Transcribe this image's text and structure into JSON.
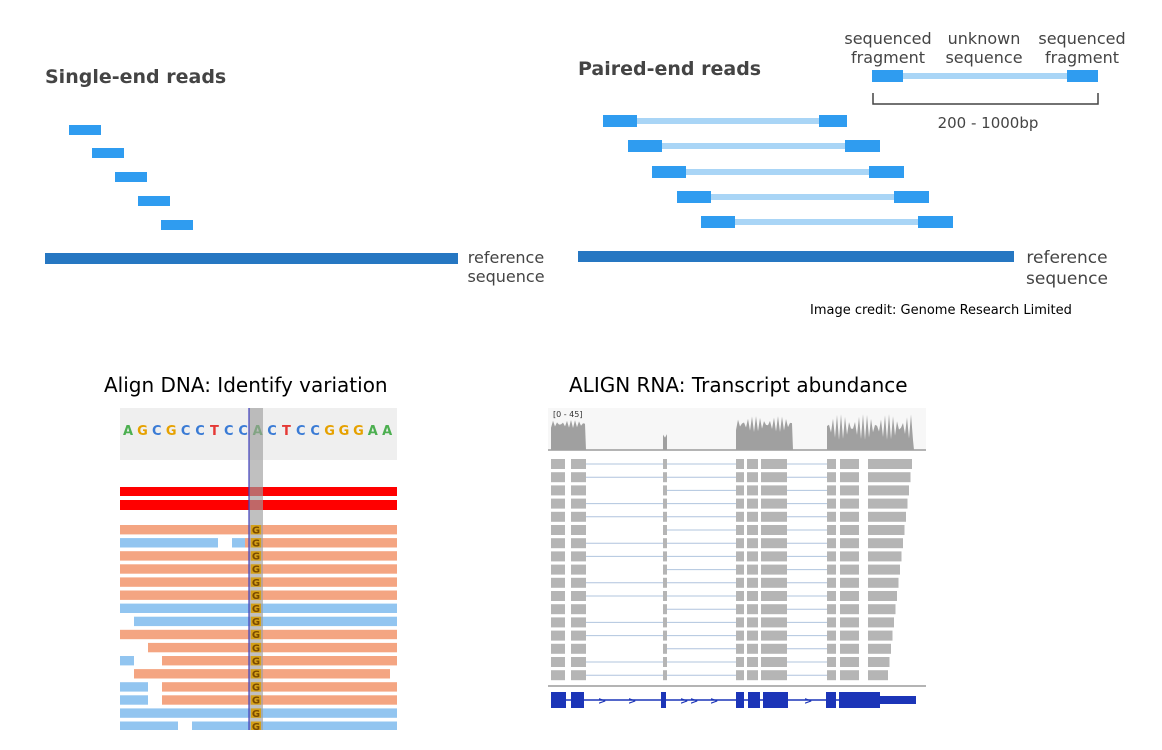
{
  "single_end": {
    "title": "Single-end reads",
    "reference_label_1": "reference",
    "reference_label_2": "sequence"
  },
  "paired_end": {
    "title": "Paired-end reads",
    "reference_label_1": "reference",
    "reference_label_2": "sequence",
    "legend": {
      "left_1": "sequenced",
      "left_2": "fragment",
      "middle_1": "unknown",
      "middle_2": "sequence",
      "right_1": "sequenced",
      "right_2": "fragment",
      "size_range": "200 - 1000bp"
    }
  },
  "credit": "Image credit: Genome Research Limited",
  "dna_panel": {
    "caption": "Align DNA: Identify variation",
    "sequence": [
      "A",
      "G",
      "C",
      "G",
      "C",
      "C",
      "T",
      "C",
      "C",
      "A",
      "C",
      "T",
      "C",
      "C",
      "G",
      "G",
      "G",
      "A",
      "A"
    ],
    "base_colors": {
      "A": "#4caf50",
      "C": "#3a7bd5",
      "G": "#e6a100",
      "T": "#e53935"
    },
    "variant_base": "G",
    "colors": {
      "forward": "#f4a582",
      "reverse": "#92c5f0",
      "mismatch": "#ff0000",
      "highlight": "#9e9e9e",
      "cursor": "#3f3fbf"
    }
  },
  "rna_panel": {
    "caption": "ALIGN RNA: Transcript abundance",
    "range_label": "[0 - 45]",
    "colors": {
      "coverage": "#a0a0a0",
      "read": "#b5b5b5",
      "junction": "#b0c4de",
      "gene": "#1c35b8"
    }
  }
}
